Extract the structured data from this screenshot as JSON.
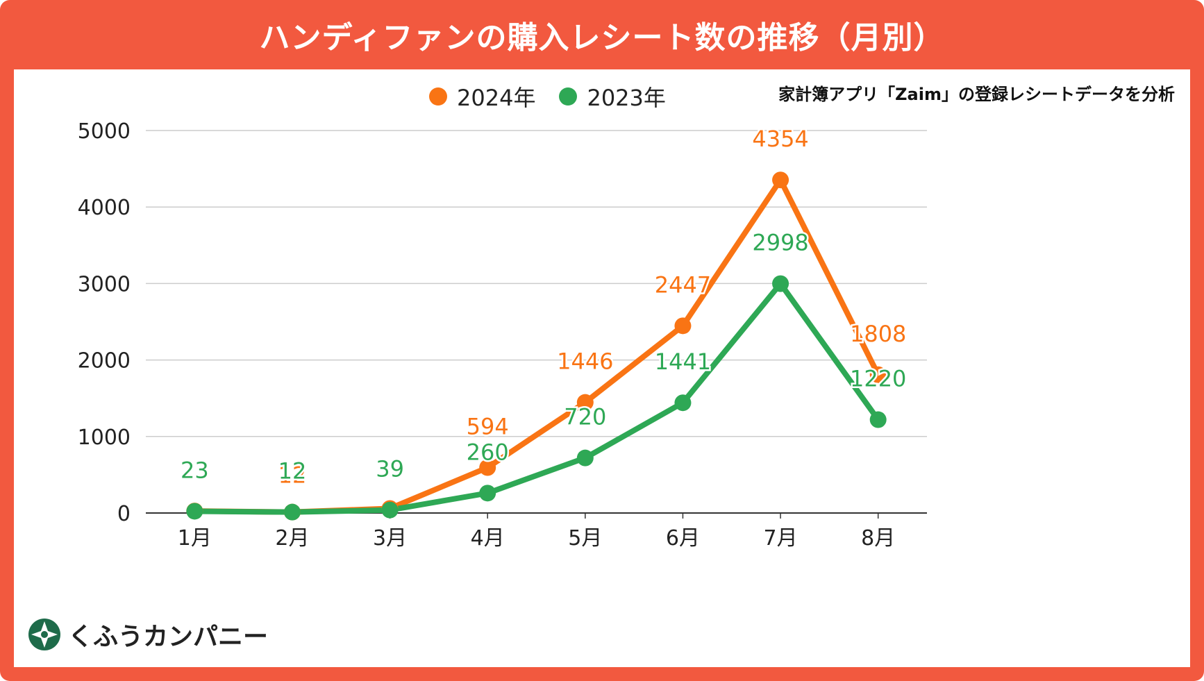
{
  "header": {
    "title": "ハンディファンの購入レシート数の推移（月別）"
  },
  "note": "家計簿アプリ「Zaim」の登録レシートデータを分析",
  "brand": {
    "name": "くふうカンパニー",
    "logo_icon": "compass-star-icon",
    "logo_color": "#1E6B4A"
  },
  "colors": {
    "frame": "#F2593F",
    "series_2024": "#F97414",
    "series_2023": "#2EA855",
    "grid": "#CCCCCC",
    "axis": "#333333"
  },
  "chart_data": {
    "type": "line",
    "title": "ハンディファンの購入レシート数の推移（月別）",
    "categories": [
      "1月",
      "2月",
      "3月",
      "4月",
      "5月",
      "6月",
      "7月",
      "8月"
    ],
    "ylim": [
      0,
      5000
    ],
    "yticks": [
      0,
      1000,
      2000,
      3000,
      4000,
      5000
    ],
    "ytick_labels": [
      "0",
      "1000",
      "2000",
      "3000",
      "4000",
      "5000"
    ],
    "grid": true,
    "legend": "top",
    "series": [
      {
        "name": "2024年",
        "values": [
          26,
          12,
          59,
          594,
          1446,
          2447,
          4354,
          1808
        ],
        "labels": [
          "",
          "12",
          "",
          "594",
          "1446",
          "2447",
          "4354",
          "1808"
        ],
        "color": "#F97414"
      },
      {
        "name": "2023年",
        "values": [
          23,
          12,
          39,
          260,
          720,
          1441,
          2998,
          1220
        ],
        "labels": [
          "23",
          "12",
          "39",
          "260",
          "720",
          "1441",
          "2998",
          "1220"
        ],
        "color": "#2EA855"
      }
    ]
  }
}
